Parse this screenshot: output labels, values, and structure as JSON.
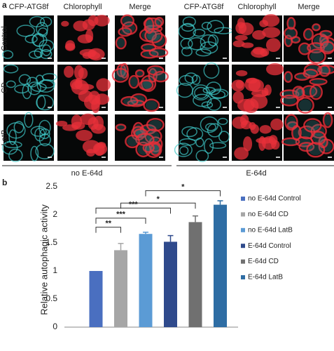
{
  "panel_a": {
    "letter": "a",
    "groups": [
      {
        "label": "no E-64d",
        "columns": [
          "CFP-ATG8f",
          "Chlorophyll",
          "Merge"
        ]
      },
      {
        "label": "E-64d",
        "columns": [
          "CFP-ATG8f",
          "Chlorophyll",
          "Merge"
        ]
      }
    ],
    "rows": [
      "Control",
      "CD",
      "LatB"
    ]
  },
  "chart_data": {
    "type": "bar",
    "panel_letter": "b",
    "y_label": "Relative autophagic activity",
    "ylim": [
      0,
      2.5
    ],
    "yticks": [
      0,
      0.5,
      1,
      1.5,
      2,
      2.5
    ],
    "series": [
      {
        "name": "no E-64d Control",
        "color": "#4a6fc0",
        "values": [
          1
        ],
        "errors": [
          0
        ]
      },
      {
        "name": "no E-64d  CD",
        "color": "#a6a6a6",
        "values": [
          1.37
        ],
        "errors": [
          0.12
        ]
      },
      {
        "name": "no E-64d  LatB",
        "color": "#5b9bd5",
        "values": [
          1.66
        ],
        "errors": [
          0.03
        ]
      },
      {
        "name": "E-64d Control",
        "color": "#2f4a8c",
        "values": [
          1.52
        ],
        "errors": [
          0.11
        ]
      },
      {
        "name": "E-64d  CD",
        "color": "#707070",
        "values": [
          1.87
        ],
        "errors": [
          0.11
        ]
      },
      {
        "name": "E-64d  LatB",
        "color": "#2e6da4",
        "values": [
          2.18
        ],
        "errors": [
          0.07
        ]
      }
    ],
    "annotations": [
      "**",
      "***",
      "***",
      "*",
      "*"
    ]
  }
}
